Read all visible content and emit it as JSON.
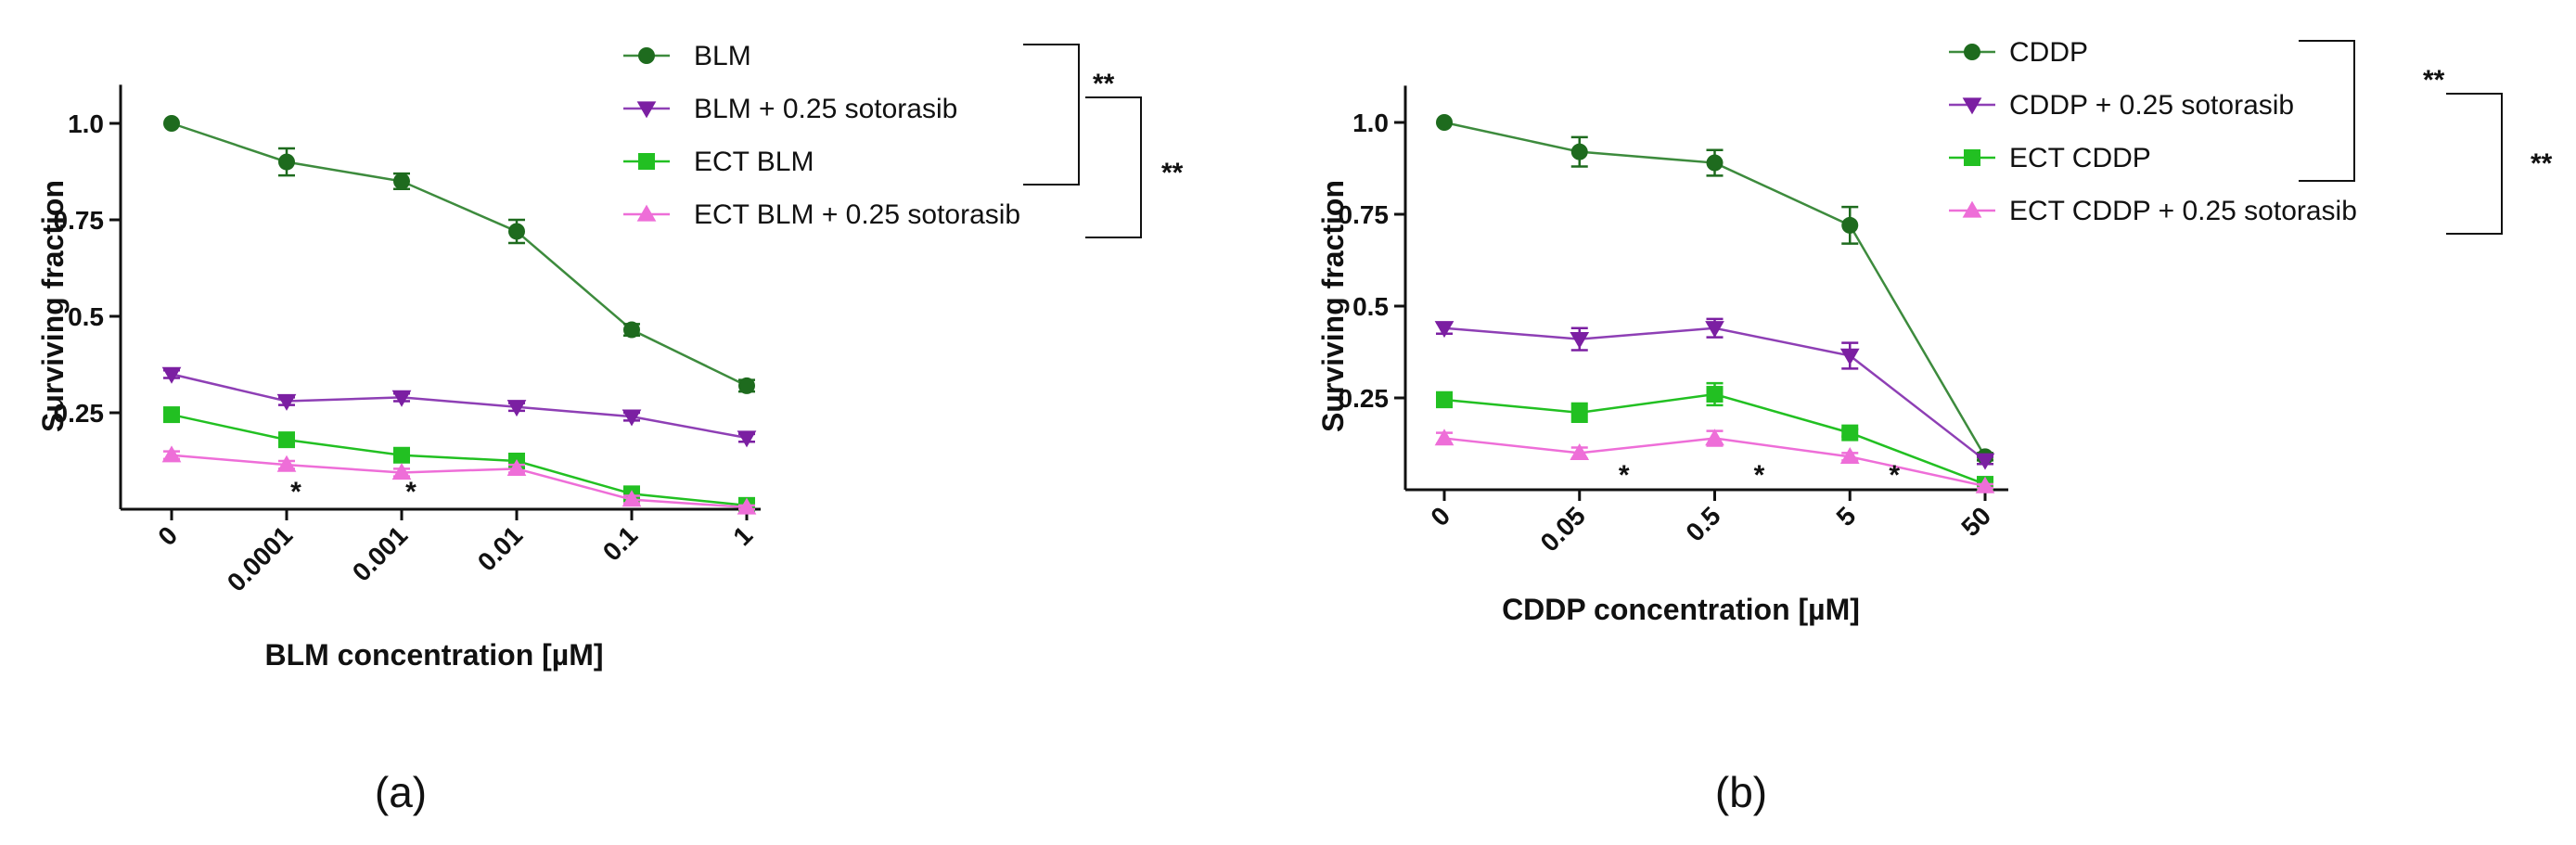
{
  "chart_data": [
    {
      "type": "line",
      "panel_label": "(a)",
      "xlabel": "BLM concentration [µM]",
      "ylabel": "Surviving fraction",
      "categories": [
        "0",
        "0.0001",
        "0.001",
        "0.01",
        "0.1",
        "1"
      ],
      "ylim": [
        0,
        1.1
      ],
      "yticks": [
        0.25,
        0.5,
        0.75,
        1.0
      ],
      "ytick_labels": [
        "0.25",
        "0.5",
        "0.75",
        "1.0"
      ],
      "grid": false,
      "legend_position": "top-right",
      "series": [
        {
          "name": "BLM",
          "marker": "circle",
          "color": "#1e6b1e",
          "line_color": "#3d8b3d",
          "values": [
            1.0,
            0.9,
            0.85,
            0.72,
            0.465,
            0.32
          ],
          "errors": [
            0.0,
            0.035,
            0.02,
            0.03,
            0.015,
            0.015
          ]
        },
        {
          "name": "BLM + 0.25 sotorasib",
          "marker": "triangle-down",
          "color": "#7b1fa2",
          "line_color": "#8e3fb5",
          "values": [
            0.35,
            0.28,
            0.29,
            0.265,
            0.24,
            0.185
          ],
          "errors": [
            0.01,
            0.01,
            0.01,
            0.01,
            0.01,
            0.01
          ]
        },
        {
          "name": "ECT BLM",
          "marker": "square",
          "color": "#22c022",
          "line_color": "#22c022",
          "values": [
            0.245,
            0.18,
            0.14,
            0.125,
            0.04,
            0.01
          ],
          "errors": [
            0.01,
            0.01,
            0.01,
            0.01,
            0.01,
            0.01
          ]
        },
        {
          "name": "ECT BLM + 0.25 sotorasib",
          "marker": "triangle-up",
          "color": "#ee6ed8",
          "line_color": "#ee6ed8",
          "values": [
            0.14,
            0.115,
            0.095,
            0.105,
            0.025,
            0.005
          ],
          "errors": [
            0.01,
            0.01,
            0.01,
            0.01,
            0.01,
            0.005
          ]
        }
      ],
      "annotations": {
        "stars": [
          {
            "category_index": 1,
            "text": "*"
          },
          {
            "category_index": 2,
            "text": "*"
          }
        ],
        "brackets": [
          {
            "from_series": 0,
            "to_series": 2,
            "text": "**"
          },
          {
            "from_series": 1,
            "to_series": 3,
            "text": "**"
          }
        ]
      }
    },
    {
      "type": "line",
      "panel_label": "(b)",
      "xlabel": "CDDP concentration [µM]",
      "ylabel": "Surviving fraction",
      "categories": [
        "0",
        "0.05",
        "0.5",
        "5",
        "50"
      ],
      "ylim": [
        0,
        1.1
      ],
      "yticks": [
        0.25,
        0.5,
        0.75,
        1.0
      ],
      "ytick_labels": [
        "0.25",
        "0.5",
        "0.75",
        "1.0"
      ],
      "grid": false,
      "legend_position": "top-right",
      "series": [
        {
          "name": "CDDP",
          "marker": "circle",
          "color": "#1e6b1e",
          "line_color": "#3d8b3d",
          "values": [
            1.0,
            0.92,
            0.89,
            0.72,
            0.09
          ],
          "errors": [
            0.0,
            0.04,
            0.035,
            0.05,
            0.01
          ]
        },
        {
          "name": "CDDP + 0.25 sotorasib",
          "marker": "triangle-down",
          "color": "#7b1fa2",
          "line_color": "#8e3fb5",
          "values": [
            0.44,
            0.41,
            0.44,
            0.365,
            0.08
          ],
          "errors": [
            0.015,
            0.03,
            0.025,
            0.035,
            0.01
          ]
        },
        {
          "name": "ECT CDDP",
          "marker": "square",
          "color": "#22c022",
          "line_color": "#22c022",
          "values": [
            0.245,
            0.21,
            0.26,
            0.155,
            0.015
          ],
          "errors": [
            0.02,
            0.025,
            0.03,
            0.01,
            0.005
          ]
        },
        {
          "name": "ECT CDDP + 0.25 sotorasib",
          "marker": "triangle-up",
          "color": "#ee6ed8",
          "line_color": "#ee6ed8",
          "values": [
            0.14,
            0.1,
            0.14,
            0.09,
            0.01
          ],
          "errors": [
            0.015,
            0.015,
            0.02,
            0.01,
            0.005
          ]
        }
      ],
      "annotations": {
        "stars": [
          {
            "category_index": 1,
            "text": "*"
          },
          {
            "category_index": 2,
            "text": "*"
          },
          {
            "category_index": 3,
            "text": "*"
          }
        ],
        "brackets": [
          {
            "from_series": 0,
            "to_series": 2,
            "text": "**"
          },
          {
            "from_series": 1,
            "to_series": 3,
            "text": "**"
          }
        ]
      }
    }
  ]
}
